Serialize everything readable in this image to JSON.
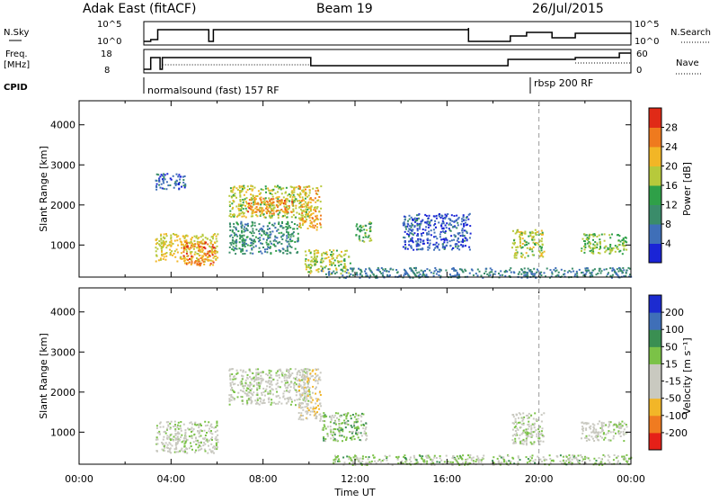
{
  "header": {
    "station": "Adak East (fitACF)",
    "beam": "Beam 19",
    "date": "26/Jul/2015"
  },
  "summary_panels": {
    "nsky": {
      "label": "N.Sky",
      "ticks": [
        "10^5",
        "10^0"
      ]
    },
    "nsearch": {
      "label": "N.Search",
      "ticks": [
        "10^5",
        "10^0"
      ]
    },
    "freq": {
      "label_line1": "Freq.",
      "label_line2": "[MHz]",
      "ticks": [
        "18",
        "8"
      ]
    },
    "nave": {
      "label": "Nave",
      "ticks": [
        "60",
        "0"
      ]
    },
    "cpid": {
      "label": "CPID",
      "segments": [
        {
          "text": "normalsound (fast) 157 RF",
          "start_hour": 3.0
        },
        {
          "text": "rbsp 200 RF",
          "start_hour": 20.0
        }
      ]
    }
  },
  "chart_data": [
    {
      "type": "heatmap",
      "name": "power",
      "ylabel": "Slant Range [km]",
      "xlabel": "",
      "xlim": [
        0,
        24
      ],
      "ylim": [
        200,
        4600
      ],
      "yticks": [
        "1000",
        "2000",
        "3000",
        "4000"
      ],
      "colorbar": {
        "label": "Power [dB]",
        "ticks": [
          "4",
          "8",
          "12",
          "16",
          "20",
          "24",
          "28"
        ],
        "colors": [
          "#1a24d6",
          "#3f6fb8",
          "#3a8c6a",
          "#2fa048",
          "#b7c93b",
          "#f2b626",
          "#ef7a1e",
          "#e02a17"
        ],
        "range": [
          0,
          32
        ]
      },
      "regions": [
        {
          "t0": 3.3,
          "t1": 6.0,
          "r0": 600,
          "r1": 1300,
          "level": 20
        },
        {
          "t0": 4.5,
          "t1": 5.9,
          "r0": 500,
          "r1": 1100,
          "level": 26
        },
        {
          "t0": 3.3,
          "t1": 4.6,
          "r0": 2400,
          "r1": 2800,
          "level": 6
        },
        {
          "t0": 6.5,
          "t1": 10.0,
          "r0": 1700,
          "r1": 2500,
          "level": 18
        },
        {
          "t0": 7.3,
          "t1": 9.3,
          "r0": 1800,
          "r1": 2200,
          "level": 25
        },
        {
          "t0": 9.5,
          "t1": 10.5,
          "r0": 1400,
          "r1": 2500,
          "level": 22
        },
        {
          "t0": 6.5,
          "t1": 9.5,
          "r0": 800,
          "r1": 1600,
          "level": 10
        },
        {
          "t0": 9.8,
          "t1": 11.8,
          "r0": 300,
          "r1": 900,
          "level": 18
        },
        {
          "t0": 12.0,
          "t1": 12.7,
          "r0": 1100,
          "r1": 1600,
          "level": 14
        },
        {
          "t0": 14.0,
          "t1": 17.0,
          "r0": 900,
          "r1": 1800,
          "level": 5
        },
        {
          "t0": 18.8,
          "t1": 20.2,
          "r0": 700,
          "r1": 1400,
          "level": 18
        },
        {
          "t0": 21.8,
          "t1": 23.8,
          "r0": 800,
          "r1": 1300,
          "level": 16
        },
        {
          "t0": 10.5,
          "t1": 24.0,
          "r0": 200,
          "r1": 450,
          "level": 8
        }
      ]
    },
    {
      "type": "heatmap",
      "name": "velocity",
      "ylabel": "Slant Range [km]",
      "xlabel": "Time UT",
      "xlim": [
        0,
        24
      ],
      "ylim": [
        200,
        4600
      ],
      "yticks": [
        "1000",
        "2000",
        "3000",
        "4000"
      ],
      "xticks": [
        "00:00",
        "04:00",
        "08:00",
        "12:00",
        "16:00",
        "20:00",
        "00:00"
      ],
      "colorbar": {
        "label": "Velocity [m s⁻¹]",
        "ticks": [
          "-200",
          "-100",
          "-50",
          "-15",
          "15",
          "50",
          "100",
          "200"
        ],
        "colors": [
          "#e52018",
          "#f07b20",
          "#f2b628",
          "#c9c9c0",
          "#c9c9c0",
          "#7bc247",
          "#3a8f52",
          "#3f6fb8",
          "#1c2bd0"
        ],
        "range": [
          -250,
          250
        ]
      },
      "regions": [
        {
          "t0": 3.3,
          "t1": 6.0,
          "r0": 500,
          "r1": 1300,
          "level": 0
        },
        {
          "t0": 6.5,
          "t1": 10.0,
          "r0": 1700,
          "r1": 2600,
          "level": 0
        },
        {
          "t0": 9.5,
          "t1": 10.5,
          "r0": 1300,
          "r1": 2600,
          "level": -60
        },
        {
          "t0": 10.5,
          "t1": 12.5,
          "r0": 800,
          "r1": 1500,
          "level": 40
        },
        {
          "t0": 11.0,
          "t1": 24.0,
          "r0": 200,
          "r1": 450,
          "level": 30
        },
        {
          "t0": 18.8,
          "t1": 20.2,
          "r0": 700,
          "r1": 1500,
          "level": 0
        },
        {
          "t0": 21.8,
          "t1": 23.8,
          "r0": 800,
          "r1": 1300,
          "level": 0
        }
      ]
    }
  ],
  "event_line_hour": 20.0
}
